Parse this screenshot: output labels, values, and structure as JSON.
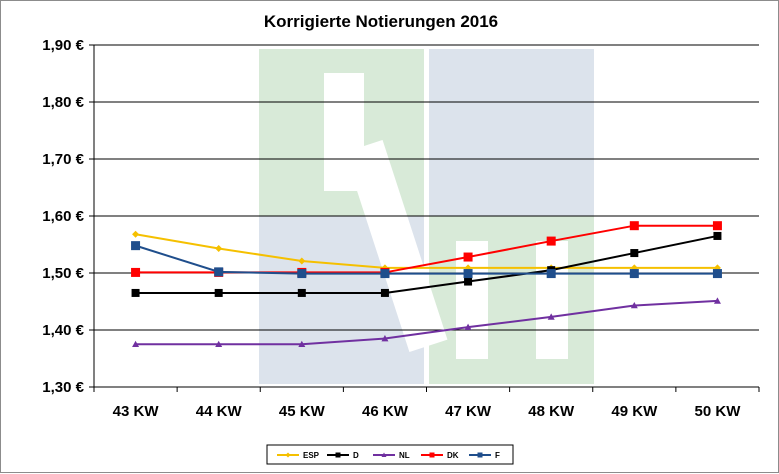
{
  "chart_data": {
    "type": "line",
    "title": "Korrigierte Notierungen 2016",
    "xlabel": "",
    "ylabel": "",
    "categories": [
      "43 KW",
      "44 KW",
      "45 KW",
      "46 KW",
      "47 KW",
      "48 KW",
      "49 KW",
      "50 KW"
    ],
    "ylim": [
      1.3,
      1.9
    ],
    "yticks": [
      1.3,
      1.4,
      1.5,
      1.6,
      1.7,
      1.8,
      1.9
    ],
    "ytick_labels": [
      "1,30 €",
      "1,40 €",
      "1,50 €",
      "1,60 €",
      "1,70 €",
      "1,80 €",
      "1,90 €"
    ],
    "grid": true,
    "legend_position": "bottom",
    "series": [
      {
        "name": "ESP",
        "color": "#f5c000",
        "marker": "diamond",
        "values": [
          1.568,
          1.543,
          1.521,
          1.509,
          1.509,
          1.509,
          1.509,
          1.509
        ]
      },
      {
        "name": "D",
        "color": "#000000",
        "marker": "square",
        "values": [
          1.465,
          1.465,
          1.465,
          1.465,
          1.485,
          1.505,
          1.535,
          1.565
        ]
      },
      {
        "name": "NL",
        "color": "#7030a0",
        "marker": "triangle",
        "values": [
          1.375,
          1.375,
          1.375,
          1.385,
          1.405,
          1.423,
          1.443,
          1.451
        ]
      },
      {
        "name": "DK",
        "color": "#ff0000",
        "marker": "square",
        "values": [
          1.501,
          1.501,
          1.501,
          1.501,
          1.528,
          1.556,
          1.583,
          1.583
        ]
      },
      {
        "name": "F",
        "color": "#1f4e8c",
        "marker": "square",
        "values": [
          1.548,
          1.502,
          1.499,
          1.499,
          1.499,
          1.499,
          1.499,
          1.499
        ]
      }
    ]
  }
}
